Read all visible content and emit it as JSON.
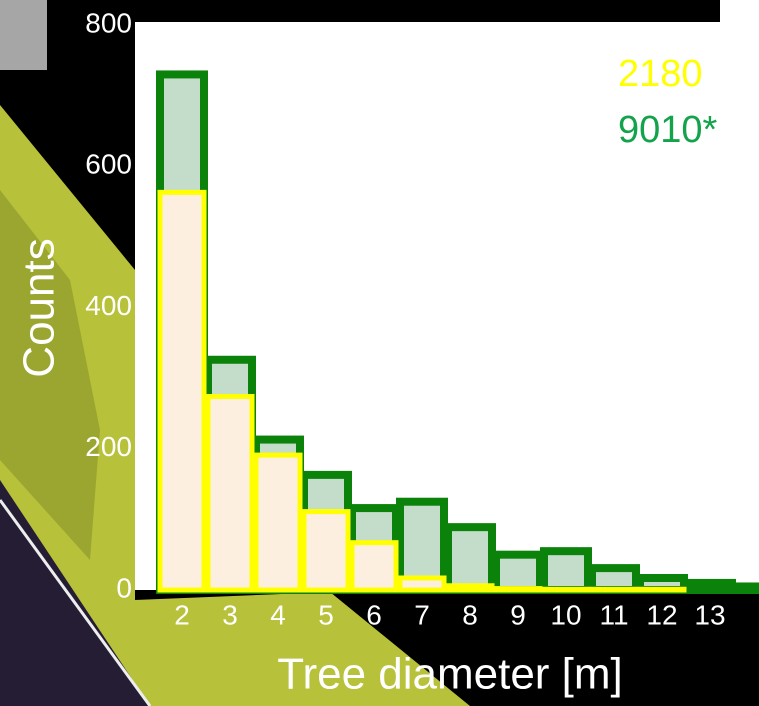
{
  "chart_data": {
    "type": "bar",
    "categories": [
      "2",
      "3",
      "4",
      "5",
      "6",
      "7",
      "8",
      "9",
      "10",
      "11",
      "12",
      "13",
      null
    ],
    "series": [
      {
        "name": "9010*",
        "color": "#0b830b",
        "fill": "#c4ddcb",
        "values": [
          730,
          326,
          213,
          163,
          116,
          125,
          89,
          50,
          55,
          31,
          17,
          10,
          5
        ]
      },
      {
        "name": "2180",
        "color": "#ffff00",
        "fill": "#fdefdf",
        "values": [
          563,
          274,
          191,
          111,
          67,
          17,
          6,
          2,
          1,
          1,
          1,
          0,
          0
        ]
      }
    ],
    "ylim": [
      0,
      800
    ],
    "yticks": [
      0,
      200,
      400,
      600,
      800
    ],
    "xlabel": "Tree diameter [m]",
    "ylabel": "Counts",
    "legend": "top-right"
  }
}
